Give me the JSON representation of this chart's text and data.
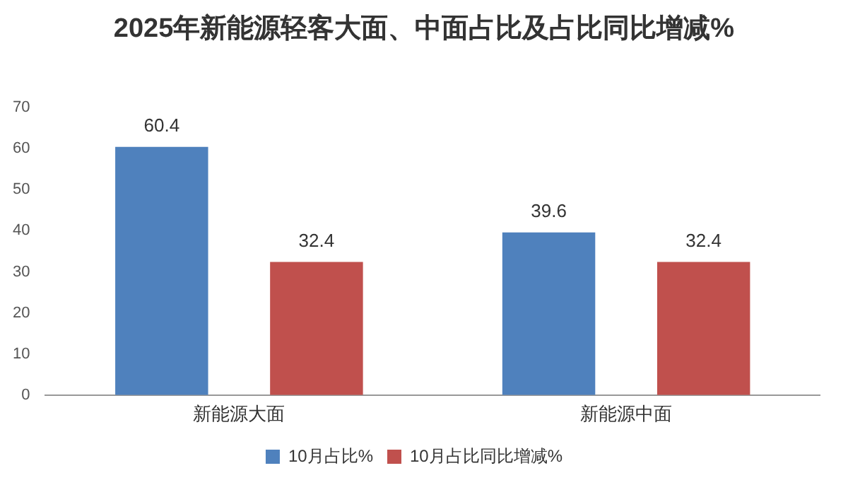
{
  "chart_data": {
    "type": "bar",
    "title": "2025年新能源轻客大面、中面占比及占比同比增减%",
    "categories": [
      "新能源大面",
      "新能源中面"
    ],
    "series": [
      {
        "name": "10月占比%",
        "color": "#4f81bd",
        "values": [
          60.4,
          39.6
        ]
      },
      {
        "name": "10月占比同比增减%",
        "color": "#c0504d",
        "values": [
          32.4,
          32.4
        ]
      }
    ],
    "ylim": [
      0,
      70
    ],
    "yticks": [
      0,
      10,
      20,
      30,
      40,
      50,
      60,
      70
    ],
    "grid": false,
    "legend": "bottom",
    "data_labels": true
  }
}
